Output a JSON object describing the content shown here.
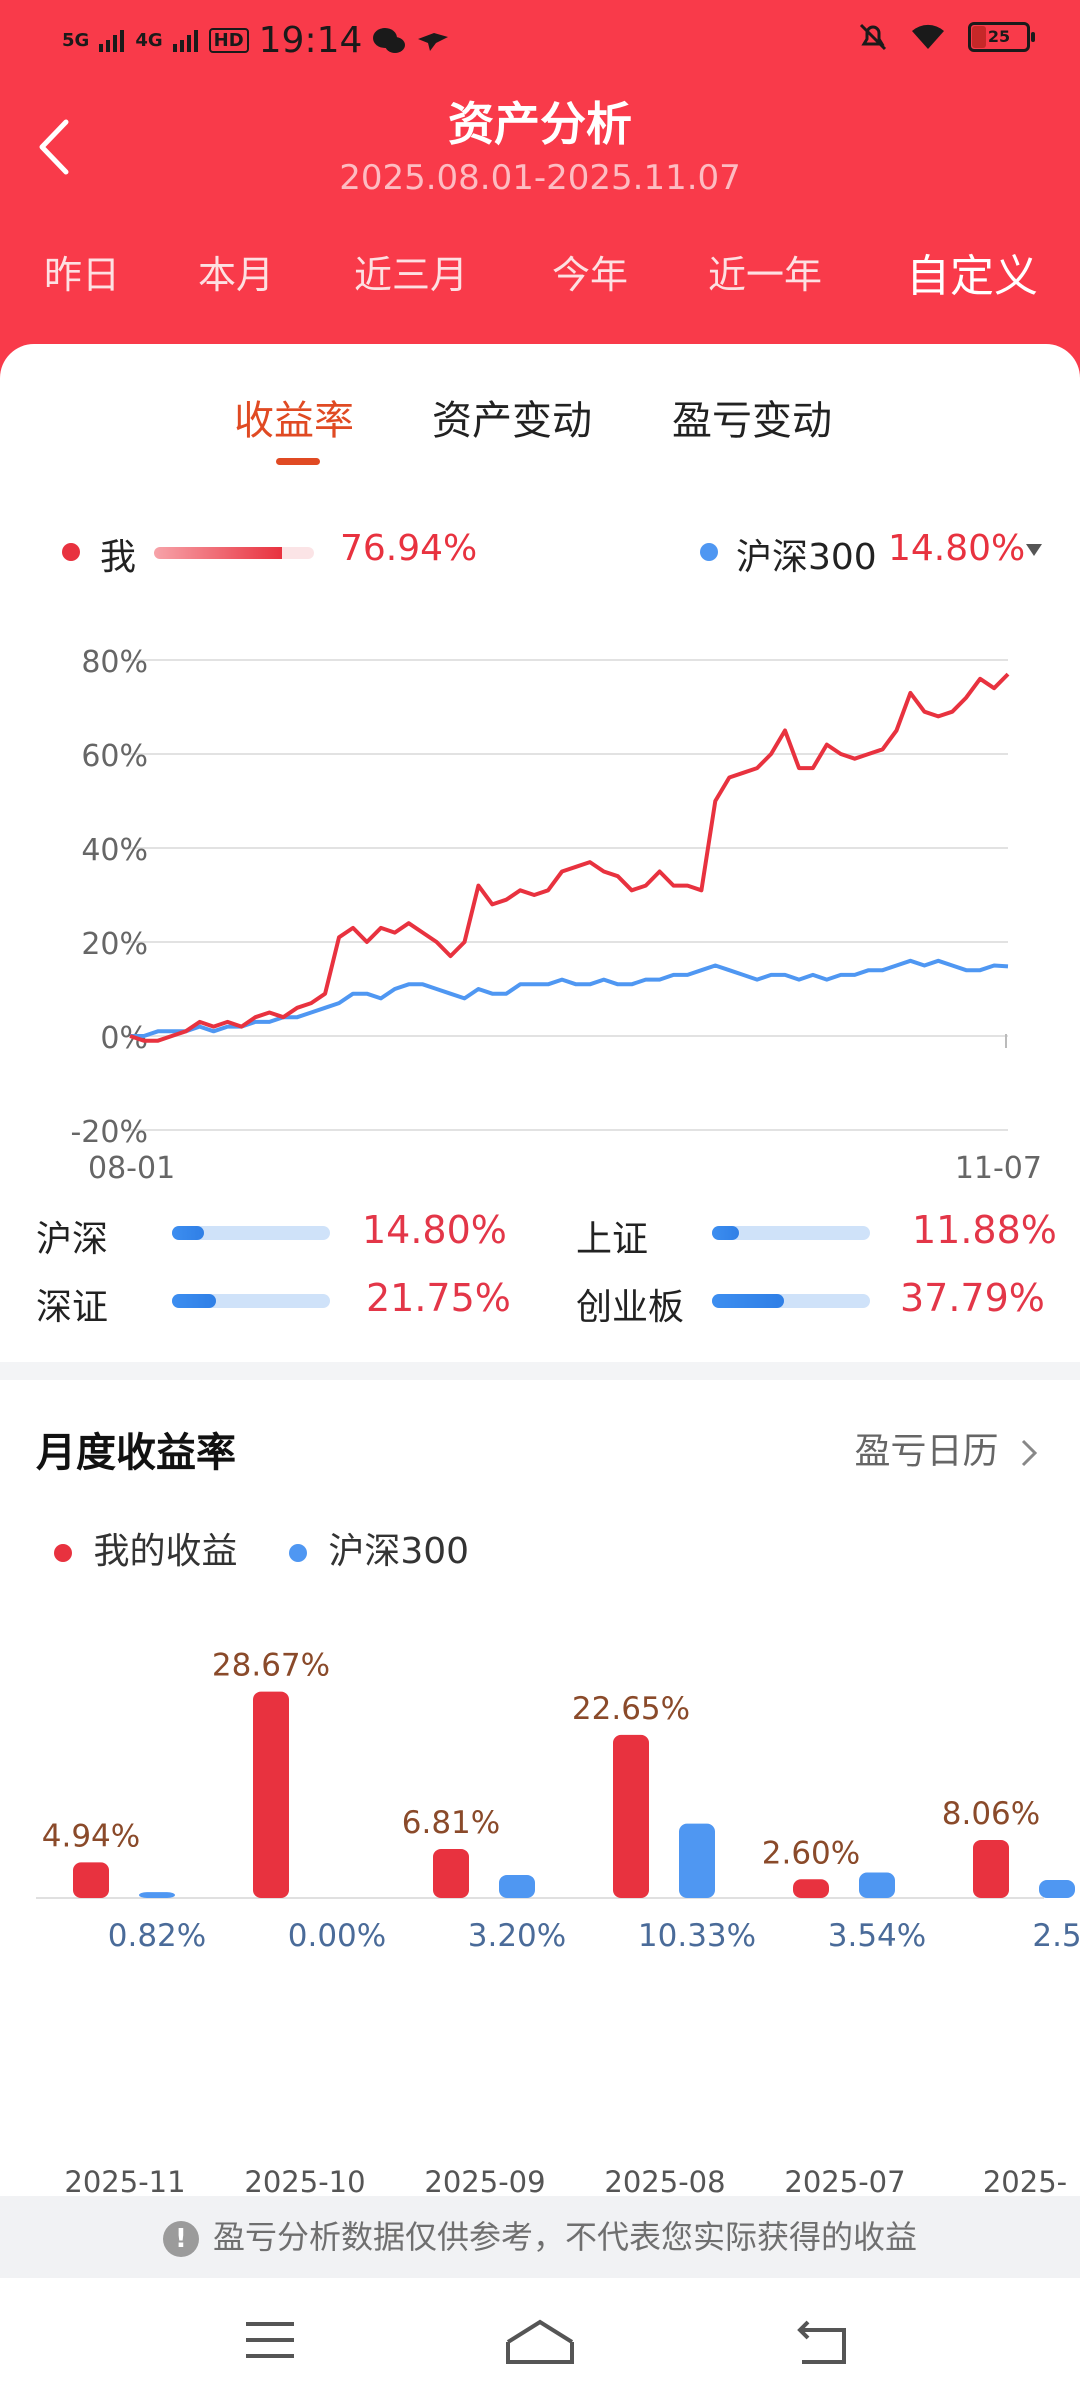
{
  "status_bar": {
    "time": "19:14",
    "signal_1": "5G",
    "signal_2": "4G",
    "hd_badge": "HD",
    "battery": "25"
  },
  "header": {
    "title": "资产分析",
    "date_range": "2025.08.01-2025.11.07",
    "periods": [
      "昨日",
      "本月",
      "近三月",
      "今年",
      "近一年",
      "自定义"
    ],
    "active_period": "自定义"
  },
  "tabs": [
    "收益率",
    "资产变动",
    "盈亏变动"
  ],
  "legend": {
    "me_label": "我",
    "me_value": "76.94%",
    "benchmark_label": "沪深300",
    "benchmark_value": "14.80%"
  },
  "colors": {
    "brand_red": "#f93a4a",
    "series_me": "#e8323f",
    "series_benchmark": "#4f97f2",
    "tab_active": "#e04a23"
  },
  "chart_data": {
    "type": "line",
    "x_labels": [
      "08-01",
      "11-07"
    ],
    "y_ticks": [
      "80%",
      "60%",
      "40%",
      "20%",
      "0%",
      "-20%"
    ],
    "ylim": [
      -20,
      80
    ],
    "series": [
      {
        "name": "我",
        "values": [
          0,
          -1,
          -1,
          0,
          1,
          3,
          2,
          3,
          2,
          4,
          5,
          4,
          6,
          7,
          9,
          21,
          23,
          20,
          23,
          22,
          24,
          22,
          20,
          17,
          20,
          32,
          28,
          29,
          31,
          30,
          31,
          35,
          36,
          37,
          35,
          34,
          31,
          32,
          35,
          32,
          32,
          31,
          50,
          55,
          56,
          57,
          60,
          65,
          57,
          57,
          62,
          60,
          59,
          60,
          61,
          65,
          73,
          69,
          68,
          69,
          72,
          76,
          74,
          77
        ]
      },
      {
        "name": "沪深300",
        "values": [
          0,
          0,
          1,
          1,
          1,
          2,
          1,
          2,
          2,
          3,
          3,
          4,
          4,
          5,
          6,
          7,
          9,
          9,
          8,
          10,
          11,
          11,
          10,
          9,
          8,
          10,
          9,
          9,
          11,
          11,
          11,
          12,
          11,
          11,
          12,
          11,
          11,
          12,
          12,
          13,
          13,
          14,
          15,
          14,
          13,
          12,
          13,
          13,
          12,
          13,
          12,
          13,
          13,
          14,
          14,
          15,
          16,
          15,
          16,
          15,
          14,
          14,
          15,
          14.8
        ]
      }
    ]
  },
  "indices": [
    {
      "label": "沪深",
      "value": "14.80%",
      "level": 14.8
    },
    {
      "label": "上证",
      "value": "11.88%",
      "level": 11.88
    },
    {
      "label": "深证",
      "value": "21.75%",
      "level": 21.75
    },
    {
      "label": "创业板",
      "value": "37.79%",
      "level": 37.79
    }
  ],
  "monthly": {
    "title": "月度收益率",
    "calendar_link": "盈亏日历",
    "legend_me": "我的收益",
    "legend_benchmark": "沪深300",
    "chart_data": {
      "type": "bar",
      "categories": [
        "2025-11",
        "2025-10",
        "2025-09",
        "2025-08",
        "2025-07",
        "2025-"
      ],
      "series": [
        {
          "name": "我的收益",
          "values": [
            4.94,
            28.67,
            6.81,
            22.65,
            2.6,
            8.06
          ],
          "labels": [
            "4.94%",
            "28.67%",
            "6.81%",
            "22.65%",
            "2.60%",
            "8.06%"
          ]
        },
        {
          "name": "沪深300",
          "values": [
            0.82,
            0.0,
            3.2,
            10.33,
            3.54,
            2.5
          ],
          "labels": [
            "0.82%",
            "0.00%",
            "3.20%",
            "10.33%",
            "3.54%",
            "2.5"
          ]
        }
      ]
    }
  },
  "notice": "盈亏分析数据仅供参考，不代表您实际获得的收益"
}
